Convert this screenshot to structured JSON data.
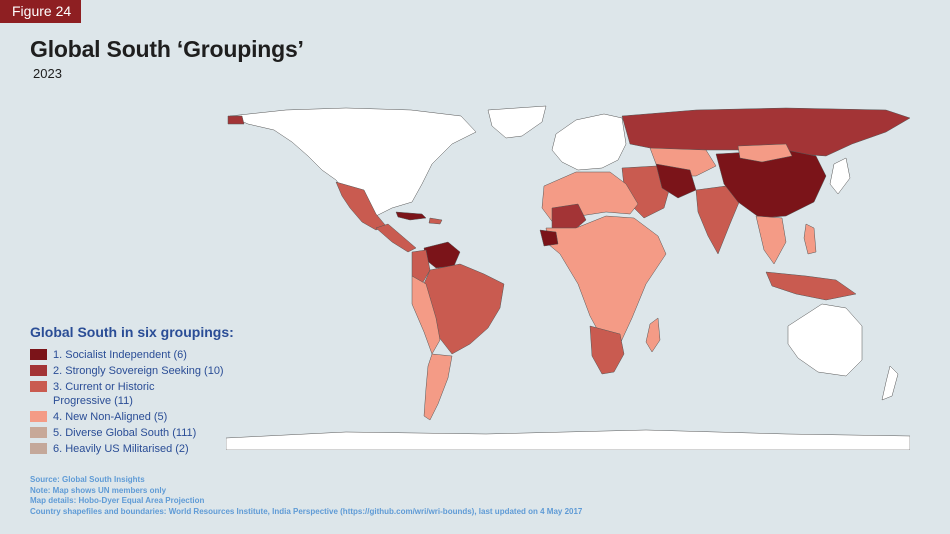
{
  "figure_label": "Figure 24",
  "title": "Global South ‘Groupings’",
  "subtitle": "2023",
  "legend": {
    "title": "Global South in six groupings:",
    "items": [
      {
        "label": "1. Socialist Independent (6)",
        "color": "#7b1419"
      },
      {
        "label": "2. Strongly Sovereign Seeking (10)",
        "color": "#a33436"
      },
      {
        "label": "3. Current or Historic\nProgressive (11)",
        "color": "#c95b50"
      },
      {
        "label": "4. New Non-Aligned (5)",
        "color": "#f49b86"
      },
      {
        "label": "5. Diverse Global South (111)",
        "color": "#c7a898"
      },
      {
        "label": "6. Heavily US Militarised (2)",
        "color": "#c4a89a"
      }
    ]
  },
  "notes": [
    "Source: Global South Insights",
    "Note: Map shows UN members only",
    "Map details: Hobo-Dyer Equal Area Projection",
    "Country shapefiles and boundaries: World Resources Institute, India Perspective (https://github.com/wri/wri-bounds), last updated on 4 May 2017"
  ],
  "colors": {
    "background": "#dde6ea",
    "non_member": "#ffffff",
    "socialist": "#7b1419",
    "sovereign": "#a33436",
    "progressive": "#c95b50",
    "non_aligned": "#f49b86",
    "diverse": "#f49b86",
    "accent_tag": "#8e1f22"
  }
}
